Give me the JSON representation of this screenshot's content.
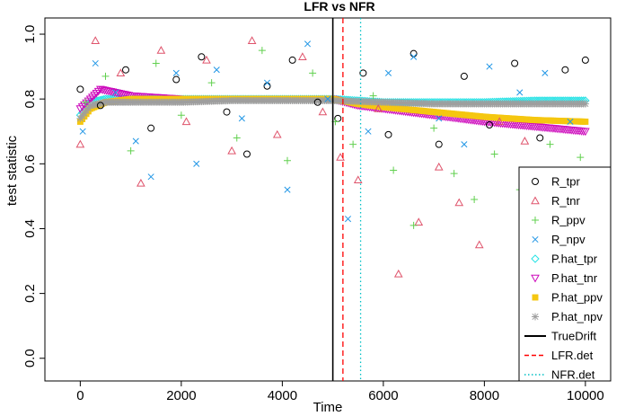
{
  "chart_data": {
    "type": "scatter",
    "title": "LFR vs NFR",
    "xlabel": "Time",
    "ylabel": "test statistic",
    "xlim": [
      -700,
      10500
    ],
    "ylim": [
      -0.07,
      1.05
    ],
    "x_ticks": [
      0,
      2000,
      4000,
      6000,
      8000,
      10000
    ],
    "y_ticks": [
      0.0,
      0.2,
      0.4,
      0.6,
      0.8,
      1.0
    ],
    "x_tick_labels": [
      "0",
      "2000",
      "4000",
      "6000",
      "8000",
      "10000"
    ],
    "y_tick_labels": [
      "0.0",
      "0.2",
      "0.4",
      "0.6",
      "0.8",
      "1.0"
    ],
    "grid": false,
    "legend_position": "bottom-right",
    "legend": [
      {
        "label": "R_tpr",
        "symbol": "circle",
        "color": "#000000"
      },
      {
        "label": "R_tnr",
        "symbol": "triangle-up",
        "color": "#DF536B"
      },
      {
        "label": "R_ppv",
        "symbol": "plus",
        "color": "#61D04F"
      },
      {
        "label": "R_npv",
        "symbol": "cross",
        "color": "#2297E6"
      },
      {
        "label": "P.hat_tpr",
        "symbol": "diamond",
        "color": "#28E2E5"
      },
      {
        "label": "P.hat_tnr",
        "symbol": "triangle-down",
        "color": "#CD0BBC"
      },
      {
        "label": "P.hat_ppv",
        "symbol": "filled-square",
        "color": "#F5C710"
      },
      {
        "label": "P.hat_npv",
        "symbol": "asterisk",
        "color": "#9E9E9E"
      },
      {
        "label": "TrueDrift",
        "symbol": "line-solid",
        "color": "#000000"
      },
      {
        "label": "LFR.det",
        "symbol": "line-dashed",
        "color": "#FF0000"
      },
      {
        "label": "NFR.det",
        "symbol": "line-dotted",
        "color": "#00BFC4"
      }
    ],
    "vertical_lines": [
      {
        "name": "TrueDrift",
        "x": 5000,
        "color": "#000000",
        "style": "solid"
      },
      {
        "name": "LFR.det",
        "x": 5200,
        "color": "#FF0000",
        "style": "dashed"
      },
      {
        "name": "NFR.det",
        "x": 5550,
        "color": "#00BFC4",
        "style": "dotted"
      }
    ],
    "scatter_series": [
      {
        "name": "R_tpr",
        "color": "#000000",
        "symbol": "circle",
        "x": [
          0,
          400,
          900,
          1400,
          1900,
          2400,
          2900,
          3300,
          3700,
          4200,
          4700,
          5100,
          5600,
          6100,
          6600,
          7100,
          7600,
          8100,
          8600,
          9100,
          9600,
          10000
        ],
        "y": [
          0.83,
          0.78,
          0.89,
          0.71,
          0.86,
          0.93,
          0.76,
          0.63,
          0.84,
          0.92,
          0.79,
          0.74,
          0.88,
          0.69,
          0.94,
          0.66,
          0.87,
          0.72,
          0.91,
          0.68,
          0.89,
          0.92
        ]
      },
      {
        "name": "R_tnr",
        "color": "#DF536B",
        "symbol": "triangle-up",
        "x": [
          0,
          300,
          800,
          1200,
          1600,
          2100,
          2500,
          3000,
          3400,
          3900,
          4400,
          4800,
          5150,
          5500,
          5900,
          6300,
          6700,
          7100,
          7500,
          7900,
          8300,
          8800
        ],
        "y": [
          0.66,
          0.98,
          0.88,
          0.54,
          0.95,
          0.73,
          0.92,
          0.64,
          0.98,
          0.69,
          0.93,
          0.76,
          0.62,
          0.55,
          0.77,
          0.26,
          0.42,
          0.59,
          0.48,
          0.35,
          0.73,
          0.67
        ]
      },
      {
        "name": "R_ppv",
        "color": "#61D04F",
        "symbol": "plus",
        "x": [
          100,
          500,
          1000,
          1500,
          2000,
          2600,
          3100,
          3600,
          4100,
          4600,
          5050,
          5400,
          5800,
          6200,
          6600,
          7000,
          7400,
          7800,
          8200,
          8700,
          9300,
          9900
        ],
        "y": [
          0.79,
          0.87,
          0.64,
          0.91,
          0.75,
          0.85,
          0.68,
          0.95,
          0.61,
          0.88,
          0.73,
          0.66,
          0.81,
          0.58,
          0.41,
          0.71,
          0.57,
          0.49,
          0.63,
          0.52,
          0.66,
          0.62
        ]
      },
      {
        "name": "R_npv",
        "color": "#2297E6",
        "symbol": "cross",
        "x": [
          50,
          300,
          700,
          1100,
          1400,
          1900,
          2300,
          2700,
          3200,
          3700,
          4100,
          4500,
          4900,
          5300,
          5700,
          6100,
          6600,
          7100,
          7600,
          8100,
          8700,
          9200,
          9700
        ],
        "y": [
          0.7,
          0.91,
          0.82,
          0.67,
          0.56,
          0.88,
          0.6,
          0.89,
          0.74,
          0.85,
          0.52,
          0.97,
          0.8,
          0.43,
          0.7,
          0.88,
          0.93,
          0.74,
          0.66,
          0.9,
          0.82,
          0.88,
          0.73
        ]
      }
    ],
    "line_series": [
      {
        "name": "P.hat_tpr",
        "color": "#28E2E5",
        "symbol": "diamond",
        "x": [
          0,
          200,
          500,
          1000,
          2000,
          3000,
          4000,
          5000,
          5500,
          6000,
          7000,
          8000,
          9000,
          10000
        ],
        "y": [
          0.75,
          0.79,
          0.8,
          0.8,
          0.8,
          0.8,
          0.8,
          0.8,
          0.795,
          0.79,
          0.79,
          0.79,
          0.795,
          0.795
        ]
      },
      {
        "name": "P.hat_tnr",
        "color": "#CD0BBC",
        "symbol": "triangle-down",
        "x": [
          0,
          200,
          400,
          1000,
          2000,
          3000,
          4000,
          5000,
          5500,
          6000,
          7000,
          8000,
          9000,
          10000
        ],
        "y": [
          0.77,
          0.8,
          0.83,
          0.81,
          0.8,
          0.8,
          0.8,
          0.8,
          0.78,
          0.77,
          0.75,
          0.73,
          0.715,
          0.7
        ]
      },
      {
        "name": "P.hat_ppv",
        "color": "#F5C710",
        "symbol": "filled-square",
        "x": [
          0,
          200,
          500,
          1000,
          2000,
          3000,
          4000,
          5000,
          5500,
          6000,
          7000,
          8000,
          9000,
          10000
        ],
        "y": [
          0.73,
          0.77,
          0.79,
          0.8,
          0.8,
          0.8,
          0.8,
          0.8,
          0.785,
          0.775,
          0.76,
          0.745,
          0.735,
          0.73
        ]
      },
      {
        "name": "P.hat_npv",
        "color": "#9E9E9E",
        "symbol": "asterisk",
        "x": [
          0,
          200,
          500,
          1000,
          2000,
          3000,
          4000,
          5000,
          6000,
          7000,
          8000,
          9000,
          10000
        ],
        "y": [
          0.74,
          0.78,
          0.79,
          0.79,
          0.79,
          0.795,
          0.795,
          0.795,
          0.79,
          0.785,
          0.785,
          0.785,
          0.785
        ]
      }
    ]
  }
}
